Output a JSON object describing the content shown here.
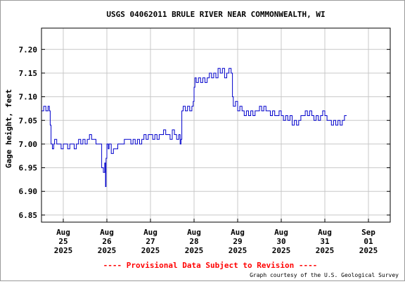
{
  "chart_data": {
    "type": "line",
    "title": "USGS 04062011 BRULE RIVER NEAR COMMONWEALTH, WI",
    "ylabel": "Gage height, feet",
    "xlabel": "",
    "ylim": [
      6.835,
      7.245
    ],
    "xlim": [
      0,
      8
    ],
    "yticks": [
      6.85,
      6.9,
      6.95,
      7.0,
      7.05,
      7.1,
      7.15,
      7.2
    ],
    "ytick_labels": [
      "6.85",
      "6.90",
      "6.95",
      "7.00",
      "7.05",
      "7.10",
      "7.15",
      "7.20"
    ],
    "xticks": [
      {
        "x": 0.5,
        "lines": [
          "Aug",
          "25",
          "2025"
        ]
      },
      {
        "x": 1.5,
        "lines": [
          "Aug",
          "26",
          "2025"
        ]
      },
      {
        "x": 2.5,
        "lines": [
          "Aug",
          "27",
          "2025"
        ]
      },
      {
        "x": 3.5,
        "lines": [
          "Aug",
          "28",
          "2025"
        ]
      },
      {
        "x": 4.5,
        "lines": [
          "Aug",
          "29",
          "2025"
        ]
      },
      {
        "x": 5.5,
        "lines": [
          "Aug",
          "30",
          "2025"
        ]
      },
      {
        "x": 6.5,
        "lines": [
          "Aug",
          "31",
          "2025"
        ]
      },
      {
        "x": 7.5,
        "lines": [
          "Sep",
          "01",
          "2025"
        ]
      }
    ],
    "grid": true,
    "line_color": "#0000cc",
    "series": [
      {
        "values": [
          [
            0.0,
            7.07
          ],
          [
            0.05,
            7.08
          ],
          [
            0.1,
            7.07
          ],
          [
            0.15,
            7.08
          ],
          [
            0.18,
            7.07
          ],
          [
            0.2,
            7.04
          ],
          [
            0.22,
            7.0
          ],
          [
            0.25,
            6.99
          ],
          [
            0.28,
            7.0
          ],
          [
            0.3,
            7.01
          ],
          [
            0.35,
            7.0
          ],
          [
            0.4,
            7.0
          ],
          [
            0.45,
            6.99
          ],
          [
            0.5,
            7.0
          ],
          [
            0.55,
            7.0
          ],
          [
            0.6,
            6.99
          ],
          [
            0.65,
            7.0
          ],
          [
            0.7,
            7.0
          ],
          [
            0.75,
            6.99
          ],
          [
            0.8,
            7.0
          ],
          [
            0.85,
            7.01
          ],
          [
            0.9,
            7.0
          ],
          [
            0.95,
            7.01
          ],
          [
            1.0,
            7.0
          ],
          [
            1.05,
            7.01
          ],
          [
            1.1,
            7.02
          ],
          [
            1.15,
            7.01
          ],
          [
            1.2,
            7.01
          ],
          [
            1.25,
            7.0
          ],
          [
            1.3,
            7.0
          ],
          [
            1.35,
            7.0
          ],
          [
            1.38,
            6.95
          ],
          [
            1.4,
            6.95
          ],
          [
            1.42,
            6.94
          ],
          [
            1.45,
            6.96
          ],
          [
            1.47,
            6.91
          ],
          [
            1.48,
            6.97
          ],
          [
            1.5,
            7.0
          ],
          [
            1.53,
            6.99
          ],
          [
            1.55,
            7.0
          ],
          [
            1.6,
            6.98
          ],
          [
            1.65,
            6.99
          ],
          [
            1.7,
            6.99
          ],
          [
            1.75,
            7.0
          ],
          [
            1.8,
            7.0
          ],
          [
            1.85,
            7.0
          ],
          [
            1.9,
            7.01
          ],
          [
            1.95,
            7.01
          ],
          [
            2.0,
            7.01
          ],
          [
            2.05,
            7.0
          ],
          [
            2.1,
            7.01
          ],
          [
            2.15,
            7.0
          ],
          [
            2.2,
            7.01
          ],
          [
            2.25,
            7.0
          ],
          [
            2.3,
            7.01
          ],
          [
            2.35,
            7.02
          ],
          [
            2.4,
            7.01
          ],
          [
            2.45,
            7.02
          ],
          [
            2.5,
            7.02
          ],
          [
            2.55,
            7.01
          ],
          [
            2.6,
            7.02
          ],
          [
            2.65,
            7.01
          ],
          [
            2.7,
            7.02
          ],
          [
            2.75,
            7.02
          ],
          [
            2.8,
            7.03
          ],
          [
            2.85,
            7.02
          ],
          [
            2.9,
            7.02
          ],
          [
            2.95,
            7.01
          ],
          [
            3.0,
            7.03
          ],
          [
            3.05,
            7.02
          ],
          [
            3.1,
            7.01
          ],
          [
            3.15,
            7.02
          ],
          [
            3.18,
            7.0
          ],
          [
            3.2,
            7.01
          ],
          [
            3.22,
            7.07
          ],
          [
            3.25,
            7.08
          ],
          [
            3.3,
            7.07
          ],
          [
            3.35,
            7.08
          ],
          [
            3.4,
            7.07
          ],
          [
            3.45,
            7.08
          ],
          [
            3.48,
            7.09
          ],
          [
            3.5,
            7.12
          ],
          [
            3.52,
            7.14
          ],
          [
            3.55,
            7.13
          ],
          [
            3.6,
            7.14
          ],
          [
            3.65,
            7.13
          ],
          [
            3.7,
            7.14
          ],
          [
            3.75,
            7.13
          ],
          [
            3.8,
            7.14
          ],
          [
            3.85,
            7.15
          ],
          [
            3.9,
            7.14
          ],
          [
            3.95,
            7.15
          ],
          [
            4.0,
            7.14
          ],
          [
            4.05,
            7.16
          ],
          [
            4.1,
            7.15
          ],
          [
            4.15,
            7.16
          ],
          [
            4.2,
            7.14
          ],
          [
            4.25,
            7.15
          ],
          [
            4.3,
            7.16
          ],
          [
            4.35,
            7.15
          ],
          [
            4.38,
            7.1
          ],
          [
            4.4,
            7.08
          ],
          [
            4.45,
            7.09
          ],
          [
            4.5,
            7.07
          ],
          [
            4.55,
            7.08
          ],
          [
            4.6,
            7.07
          ],
          [
            4.65,
            7.06
          ],
          [
            4.7,
            7.07
          ],
          [
            4.75,
            7.06
          ],
          [
            4.8,
            7.07
          ],
          [
            4.85,
            7.06
          ],
          [
            4.9,
            7.07
          ],
          [
            4.95,
            7.07
          ],
          [
            5.0,
            7.08
          ],
          [
            5.05,
            7.07
          ],
          [
            5.1,
            7.08
          ],
          [
            5.15,
            7.07
          ],
          [
            5.2,
            7.07
          ],
          [
            5.25,
            7.06
          ],
          [
            5.3,
            7.07
          ],
          [
            5.35,
            7.06
          ],
          [
            5.4,
            7.06
          ],
          [
            5.45,
            7.07
          ],
          [
            5.5,
            7.06
          ],
          [
            5.55,
            7.05
          ],
          [
            5.6,
            7.06
          ],
          [
            5.65,
            7.05
          ],
          [
            5.7,
            7.06
          ],
          [
            5.75,
            7.04
          ],
          [
            5.8,
            7.05
          ],
          [
            5.85,
            7.04
          ],
          [
            5.9,
            7.05
          ],
          [
            5.95,
            7.06
          ],
          [
            6.0,
            7.06
          ],
          [
            6.05,
            7.07
          ],
          [
            6.1,
            7.06
          ],
          [
            6.15,
            7.07
          ],
          [
            6.2,
            7.06
          ],
          [
            6.25,
            7.05
          ],
          [
            6.3,
            7.06
          ],
          [
            6.35,
            7.05
          ],
          [
            6.4,
            7.06
          ],
          [
            6.45,
            7.07
          ],
          [
            6.5,
            7.06
          ],
          [
            6.55,
            7.05
          ],
          [
            6.6,
            7.05
          ],
          [
            6.65,
            7.04
          ],
          [
            6.7,
            7.05
          ],
          [
            6.75,
            7.04
          ],
          [
            6.8,
            7.05
          ],
          [
            6.85,
            7.04
          ],
          [
            6.9,
            7.05
          ],
          [
            6.95,
            7.06
          ],
          [
            7.0,
            7.06
          ]
        ]
      }
    ],
    "footer_notice": "---- Provisional Data Subject to Revision ----",
    "credit": "Graph courtesy of the U.S. Geological Survey",
    "notice_color": "#ff0000"
  }
}
